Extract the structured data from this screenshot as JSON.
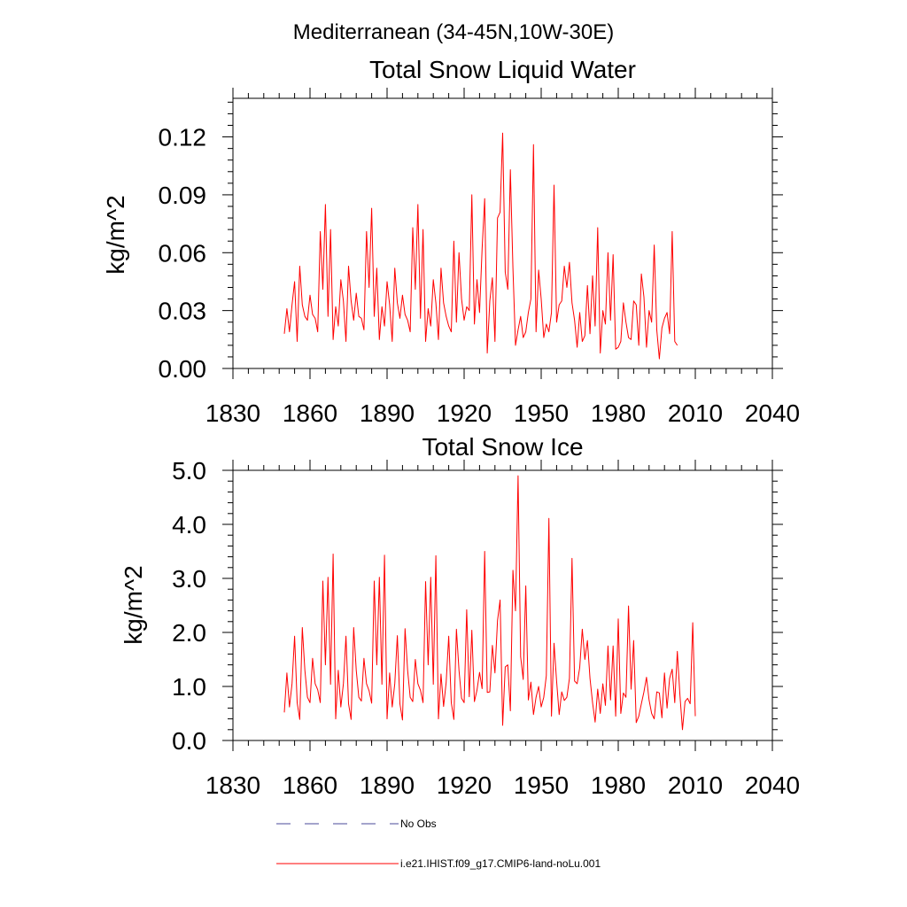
{
  "page_title": "Mediterranean (34-45N,10W-30E)",
  "colors": {
    "series": "#ff0000",
    "obs": "#4a4a9a",
    "axis": "#000000"
  },
  "legend": {
    "obs_label": "No Obs",
    "model_label": "i.e21.IHIST.f09_g17.CMIP6-land-noLu.001"
  },
  "chart_data": [
    {
      "type": "line",
      "title": "Total Snow Liquid Water",
      "ylabel": "kg/m^2",
      "xlabel": "",
      "xlim": [
        1830,
        2040
      ],
      "ylim": [
        0,
        0.14
      ],
      "x_ticks": [
        1830,
        1860,
        1890,
        1920,
        1950,
        1980,
        2010,
        2040
      ],
      "x_tick_labels": [
        "1830",
        "1860",
        "1890",
        "1920",
        "1950",
        "1980",
        "2010",
        "2040"
      ],
      "y_ticks": [
        0,
        0.03,
        0.06,
        0.09,
        0.12
      ],
      "y_tick_labels": [
        "0.00",
        "0.03",
        "0.06",
        "0.09",
        "0.12"
      ],
      "y_minor_step": 0.006,
      "x_start": 1850,
      "series": [
        {
          "name": "i.e21.IHIST.f09_g17.CMIP6-land-noLu.001",
          "values": [
            0.018,
            0.031,
            0.019,
            0.033,
            0.045,
            0.014,
            0.053,
            0.033,
            0.027,
            0.025,
            0.038,
            0.028,
            0.026,
            0.019,
            0.071,
            0.041,
            0.085,
            0.027,
            0.072,
            0.015,
            0.032,
            0.022,
            0.046,
            0.035,
            0.014,
            0.053,
            0.035,
            0.025,
            0.039,
            0.027,
            0.026,
            0.02,
            0.071,
            0.042,
            0.083,
            0.027,
            0.052,
            0.015,
            0.032,
            0.022,
            0.045,
            0.033,
            0.014,
            0.052,
            0.034,
            0.026,
            0.038,
            0.028,
            0.025,
            0.019,
            0.073,
            0.041,
            0.085,
            0.026,
            0.072,
            0.014,
            0.031,
            0.022,
            0.046,
            0.034,
            0.015,
            0.052,
            0.034,
            0.027,
            0.022,
            0.019,
            0.066,
            0.024,
            0.06,
            0.036,
            0.025,
            0.032,
            0.03,
            0.09,
            0.023,
            0.046,
            0.029,
            0.062,
            0.088,
            0.008,
            0.035,
            0.047,
            0.014,
            0.078,
            0.081,
            0.122,
            0.05,
            0.041,
            0.103,
            0.052,
            0.012,
            0.02,
            0.027,
            0.016,
            0.019,
            0.029,
            0.036,
            0.116,
            0.019,
            0.051,
            0.036,
            0.016,
            0.023,
            0.019,
            0.029,
            0.095,
            0.024,
            0.033,
            0.035,
            0.053,
            0.042,
            0.055,
            0.034,
            0.025,
            0.011,
            0.029,
            0.014,
            0.017,
            0.043,
            0.018,
            0.048,
            0.022,
            0.073,
            0.008,
            0.03,
            0.023,
            0.06,
            0.025,
            0.059,
            0.01,
            0.011,
            0.014,
            0.034,
            0.024,
            0.016,
            0.015,
            0.035,
            0.033,
            0.012,
            0.049,
            0.037,
            0.011,
            0.03,
            0.024,
            0.064,
            0.02,
            0.005,
            0.021,
            0.026,
            0.029,
            0.018,
            0.071,
            0.014,
            0.012
          ]
        }
      ]
    },
    {
      "type": "line",
      "title": "Total Snow Ice",
      "ylabel": "kg/m^2",
      "xlabel": "",
      "xlim": [
        1830,
        2040
      ],
      "ylim": [
        0,
        5.0
      ],
      "x_ticks": [
        1830,
        1860,
        1890,
        1920,
        1950,
        1980,
        2010,
        2040
      ],
      "x_tick_labels": [
        "1830",
        "1860",
        "1890",
        "1920",
        "1950",
        "1980",
        "2010",
        "2040"
      ],
      "y_ticks": [
        0,
        1.0,
        2.0,
        3.0,
        4.0,
        5.0
      ],
      "y_tick_labels": [
        "0.0",
        "1.0",
        "2.0",
        "3.0",
        "4.0",
        "5.0"
      ],
      "y_minor_step": 0.2,
      "x_start": 1850,
      "series": [
        {
          "name": "i.e21.IHIST.f09_g17.CMIP6-land-noLu.001",
          "values": [
            0.52,
            1.25,
            0.62,
            1.05,
            1.93,
            0.7,
            0.39,
            2.09,
            1.3,
            0.8,
            0.7,
            1.52,
            1.05,
            0.94,
            0.7,
            2.95,
            1.4,
            3.02,
            1.04,
            3.45,
            0.4,
            1.3,
            0.62,
            1.05,
            1.93,
            0.68,
            0.39,
            2.09,
            1.3,
            0.8,
            0.73,
            1.52,
            1.05,
            0.92,
            0.69,
            2.95,
            1.4,
            3.02,
            1.04,
            3.43,
            0.4,
            1.25,
            0.62,
            1.05,
            1.94,
            0.68,
            0.38,
            2.07,
            1.3,
            0.8,
            0.72,
            1.5,
            1.05,
            0.93,
            0.7,
            2.94,
            1.4,
            3.02,
            1.04,
            3.42,
            0.4,
            1.23,
            0.63,
            1.07,
            1.93,
            0.7,
            0.39,
            2.06,
            1.3,
            0.78,
            0.7,
            2.42,
            0.81,
            2.04,
            0.72,
            0.93,
            1.26,
            0.96,
            3.5,
            0.89,
            0.9,
            1.76,
            1.25,
            2.22,
            2.6,
            0.28,
            1.36,
            1.4,
            0.55,
            3.15,
            2.4,
            4.9,
            1.55,
            1.13,
            2.86,
            0.75,
            1.08,
            0.48,
            0.8,
            1.0,
            0.62,
            0.8,
            1.2,
            4.11,
            0.45,
            1.8,
            1.1,
            0.48,
            0.9,
            0.74,
            0.8,
            1.15,
            3.37,
            1.1,
            1.05,
            1.35,
            2.06,
            1.5,
            1.85,
            1.15,
            0.7,
            0.34,
            0.95,
            0.5,
            1.05,
            0.65,
            1.75,
            0.75,
            1.75,
            0.45,
            2.25,
            0.5,
            0.88,
            0.8,
            2.49,
            0.95,
            1.85,
            0.33,
            0.45,
            0.68,
            0.9,
            1.17,
            0.75,
            0.5,
            0.4,
            0.9,
            0.88,
            0.42,
            1.25,
            0.6,
            1.15,
            1.32,
            0.7,
            1.65,
            0.85,
            0.2,
            0.72,
            0.78,
            0.68,
            2.18,
            0.45
          ]
        }
      ]
    }
  ]
}
